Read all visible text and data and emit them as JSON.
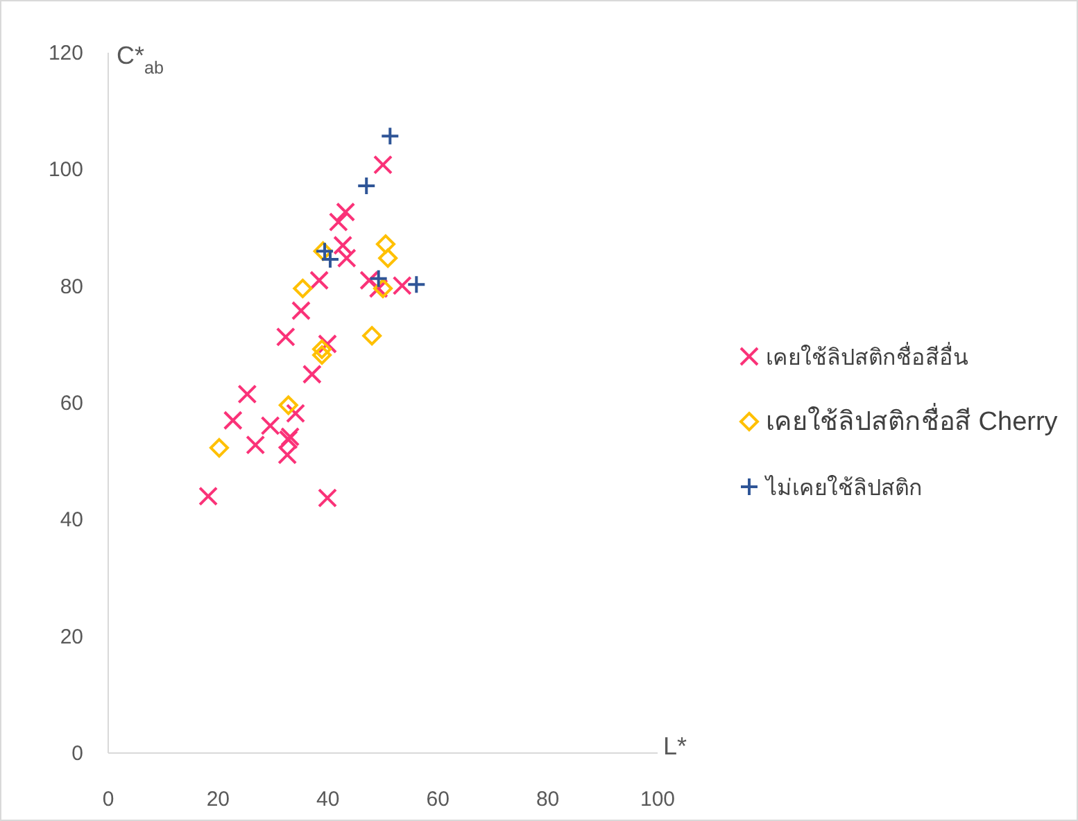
{
  "chart_data": {
    "type": "scatter",
    "xlabel": "L*",
    "ylabel": "C*$_{ab}$",
    "xlim": [
      0,
      100
    ],
    "ylim": [
      0,
      120
    ],
    "xticks": [
      0,
      20,
      40,
      60,
      80,
      100
    ],
    "yticks": [
      0,
      20,
      40,
      60,
      80,
      100,
      120
    ],
    "grid": false,
    "legend": "right",
    "series": [
      {
        "name": "เคยใช้ลิปสติกชื่อสีอื่น",
        "color": "#fa3278",
        "marker": "cross",
        "x": [
          18.2,
          22.7,
          25.3,
          26.8,
          29.5,
          32.8,
          34.1,
          32.6,
          33.1,
          39.9,
          37.1,
          50.0,
          43.2,
          41.9,
          42.7,
          43.4,
          38.4,
          47.5,
          49.2,
          53.5,
          35.1,
          32.3,
          39.9
        ],
        "values": [
          44.0,
          57.0,
          61.5,
          52.8,
          56.1,
          53.7,
          58.2,
          51.1,
          54.2,
          43.7,
          64.9,
          100.8,
          92.7,
          91.0,
          87.0,
          84.8,
          81.0,
          81.0,
          79.6,
          80.1,
          75.8,
          71.3,
          70.1
        ]
      },
      {
        "name": "เคยใช้ลิปสติกชื่อสี Cherry",
        "color": "#ffc000",
        "marker": "diamond",
        "x": [
          20.2,
          32.8,
          35.4,
          39.1,
          50.5,
          50.9,
          50.0,
          48.0,
          38.9,
          38.9
        ],
        "values": [
          52.3,
          59.6,
          79.6,
          86.0,
          87.2,
          84.8,
          79.6,
          71.5,
          68.2,
          69.2
        ]
      },
      {
        "name": "ไม่เคยใช้ลิปสติก",
        "color": "#2f5597",
        "marker": "plus",
        "x": [
          51.3,
          47.0,
          39.4,
          40.4,
          49.2,
          56.1
        ],
        "values": [
          105.7,
          97.2,
          86.0,
          84.6,
          81.3,
          80.3
        ]
      }
    ]
  }
}
